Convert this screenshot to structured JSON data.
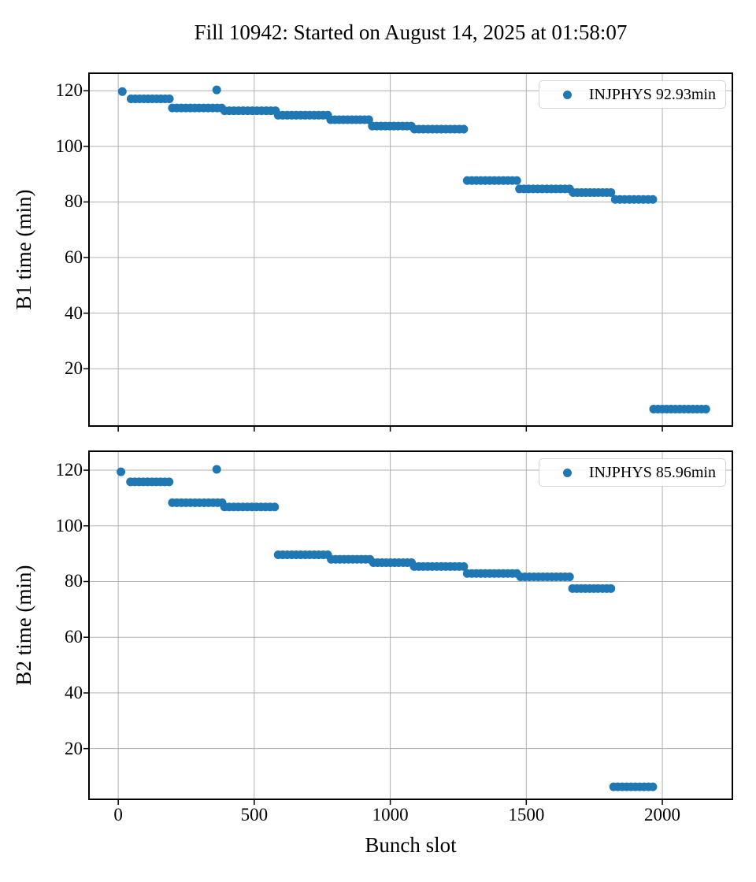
{
  "title": "Fill 10942: Started on August 14, 2025 at 01:58:07",
  "xlabel": "Bunch slot",
  "colors": {
    "marker": "#1f77b4",
    "grid": "#b0b0b0",
    "spine": "#000000",
    "legend_border": "#d4d4d4"
  },
  "chart_data": [
    {
      "type": "scatter",
      "name": "B1",
      "ylabel": "B1 time (min)",
      "legend": "INJPHYS 92.93min",
      "legend_position": "upper right",
      "grid": true,
      "xlim": [
        -107.5,
        2257.5
      ],
      "ylim": [
        -0.6,
        126.3
      ],
      "xticks": [
        0,
        500,
        1000,
        1500,
        2000
      ],
      "yticks": [
        20,
        40,
        60,
        80,
        100,
        120
      ],
      "points": [
        [
          15,
          119.7
        ],
        [
          362,
          120.3
        ]
      ],
      "segments": [
        [
          47,
          188,
          117.1
        ],
        [
          199,
          380,
          113.8
        ],
        [
          391,
          578,
          112.8
        ],
        [
          588,
          770,
          111.2
        ],
        [
          781,
          921,
          109.6
        ],
        [
          934,
          1077,
          107.3
        ],
        [
          1089,
          1270,
          106.2
        ],
        [
          1283,
          1465,
          87.7
        ],
        [
          1475,
          1659,
          84.7
        ],
        [
          1672,
          1811,
          83.4
        ],
        [
          1827,
          1965,
          80.9
        ],
        [
          1968,
          2160,
          5.5
        ]
      ]
    },
    {
      "type": "scatter",
      "name": "B2",
      "ylabel": "B2 time (min)",
      "legend": "INJPHYS 85.96min",
      "legend_position": "upper right",
      "grid": true,
      "xlim": [
        -107.5,
        2257.5
      ],
      "ylim": [
        1.8,
        126.8
      ],
      "xticks": [
        0,
        500,
        1000,
        1500,
        2000
      ],
      "yticks": [
        20,
        40,
        60,
        80,
        100,
        120
      ],
      "points": [
        [
          10,
          119.4
        ],
        [
          362,
          120.3
        ]
      ],
      "segments": [
        [
          45,
          187,
          115.8
        ],
        [
          199,
          382,
          108.3
        ],
        [
          391,
          575,
          106.8
        ],
        [
          588,
          770,
          89.6
        ],
        [
          783,
          925,
          88.0
        ],
        [
          938,
          1078,
          86.8
        ],
        [
          1088,
          1270,
          85.4
        ],
        [
          1283,
          1465,
          82.9
        ],
        [
          1479,
          1659,
          81.7
        ],
        [
          1670,
          1811,
          77.5
        ],
        [
          1821,
          1965,
          6.3
        ]
      ]
    }
  ]
}
